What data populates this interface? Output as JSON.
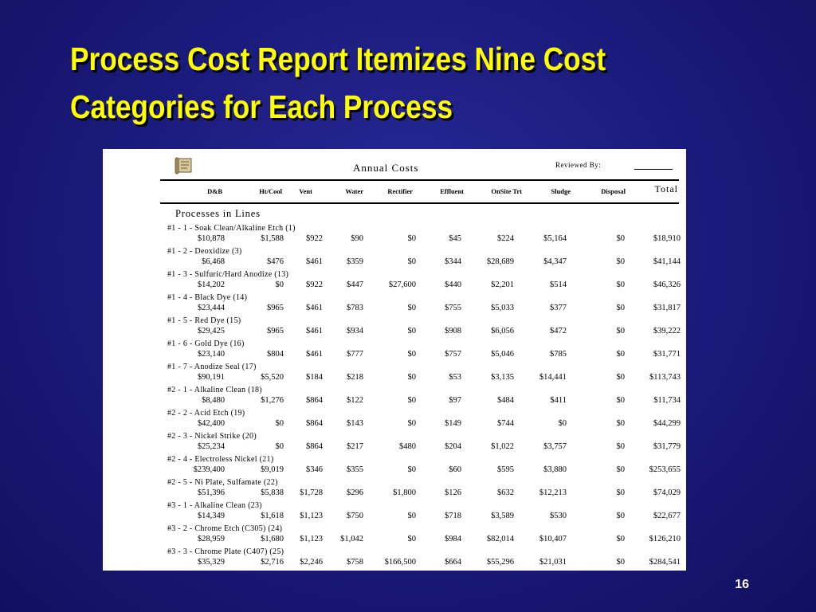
{
  "slide": {
    "title_line1": "Process Cost Report Itemizes Nine Cost",
    "title_line2": "Categories for Each Process",
    "page_number": "16"
  },
  "report": {
    "title": "Annual Costs",
    "reviewed_by_label": "Reviewed By:",
    "section_title": "Processes in Lines",
    "columns": [
      "D&B",
      "Ht/Cool",
      "Vent",
      "Water",
      "Rectifier",
      "Effluent",
      "OnSite Trt",
      "Sludge",
      "Disposal",
      "Total"
    ],
    "processes": [
      {
        "name": "#1 - 1 - Soak Clean/Alkaline Etch (1)",
        "values": [
          "$10,878",
          "$1,588",
          "$922",
          "$90",
          "$0",
          "$45",
          "$224",
          "$5,164",
          "$0",
          "$18,910"
        ]
      },
      {
        "name": "#1 - 2 - Deoxidize (3)",
        "values": [
          "$6,468",
          "$476",
          "$461",
          "$359",
          "$0",
          "$344",
          "$28,689",
          "$4,347",
          "$0",
          "$41,144"
        ]
      },
      {
        "name": "#1 - 3 - Sulfuric/Hard Anodize (13)",
        "values": [
          "$14,202",
          "$0",
          "$922",
          "$447",
          "$27,600",
          "$440",
          "$2,201",
          "$514",
          "$0",
          "$46,326"
        ]
      },
      {
        "name": "#1 - 4 - Black Dye (14)",
        "values": [
          "$23,444",
          "$965",
          "$461",
          "$783",
          "$0",
          "$755",
          "$5,033",
          "$377",
          "$0",
          "$31,817"
        ]
      },
      {
        "name": "#1 - 5 - Red Dye (15)",
        "values": [
          "$29,425",
          "$965",
          "$461",
          "$934",
          "$0",
          "$908",
          "$6,056",
          "$472",
          "$0",
          "$39,222"
        ]
      },
      {
        "name": "#1 - 6 - Gold Dye (16)",
        "values": [
          "$23,140",
          "$804",
          "$461",
          "$777",
          "$0",
          "$757",
          "$5,046",
          "$785",
          "$0",
          "$31,771"
        ]
      },
      {
        "name": "#1 - 7 - Anodize Seal (17)",
        "values": [
          "$90,191",
          "$5,520",
          "$184",
          "$218",
          "$0",
          "$53",
          "$3,135",
          "$14,441",
          "$0",
          "$113,743"
        ]
      },
      {
        "name": "#2 - 1 - Alkaline Clean (18)",
        "values": [
          "$8,480",
          "$1,276",
          "$864",
          "$122",
          "$0",
          "$97",
          "$484",
          "$411",
          "$0",
          "$11,734"
        ]
      },
      {
        "name": "#2 - 2 - Acid Etch (19)",
        "values": [
          "$42,400",
          "$0",
          "$864",
          "$143",
          "$0",
          "$149",
          "$744",
          "$0",
          "$0",
          "$44,299"
        ]
      },
      {
        "name": "#2 - 3 - Nickel Strike (20)",
        "values": [
          "$25,234",
          "$0",
          "$864",
          "$217",
          "$480",
          "$204",
          "$1,022",
          "$3,757",
          "$0",
          "$31,779"
        ]
      },
      {
        "name": "#2 - 4 - Electroless Nickel (21)",
        "values": [
          "$239,400",
          "$9,019",
          "$346",
          "$355",
          "$0",
          "$60",
          "$595",
          "$3,880",
          "$0",
          "$253,655"
        ]
      },
      {
        "name": "#2 - 5 - Ni Plate, Sulfamate (22)",
        "values": [
          "$51,396",
          "$5,838",
          "$1,728",
          "$296",
          "$1,800",
          "$126",
          "$632",
          "$12,213",
          "$0",
          "$74,029"
        ]
      },
      {
        "name": "#3 - 1 - Alkaline Clean (23)",
        "values": [
          "$14,349",
          "$1,618",
          "$1,123",
          "$750",
          "$0",
          "$718",
          "$3,589",
          "$530",
          "$0",
          "$22,677"
        ]
      },
      {
        "name": "#3 - 2 - Chrome Etch (C305) (24)",
        "values": [
          "$28,959",
          "$1,680",
          "$1,123",
          "$1,042",
          "$0",
          "$984",
          "$82,014",
          "$10,407",
          "$0",
          "$126,210"
        ]
      },
      {
        "name": "#3 - 3 - Chrome Plate (C407) (25)",
        "values": [
          "$35,329",
          "$2,716",
          "$2,246",
          "$758",
          "$166,500",
          "$664",
          "$55,296",
          "$21,031",
          "$0",
          "$284,541"
        ]
      }
    ]
  }
}
